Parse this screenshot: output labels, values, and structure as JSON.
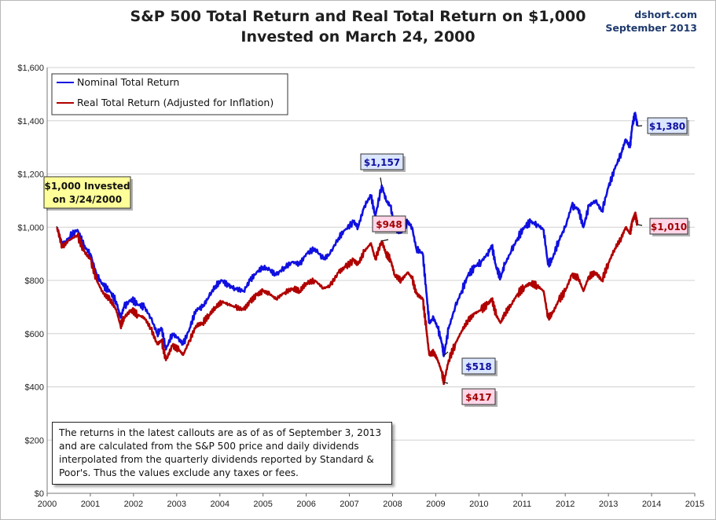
{
  "header": {
    "title_line1": "S&P 500 Total Return and Real Total Return on $1,000",
    "title_line2": "Invested on March 24, 2000",
    "source": "dshort.com",
    "date": "September 2013"
  },
  "note": "The returns in the latest callouts are as of as of September 3, 2013 and are calculated from the S&P 500 price and daily dividends interpolated from the quarterly dividends reported by Standard & Poor's. Thus the values exclude any taxes or fees.",
  "colors": {
    "nominal": "#1010e0",
    "real": "#b00000",
    "blue_box": "#dbe6ff",
    "red_box": "#ffd6e8",
    "yellow_box": "#ffff99"
  },
  "chart_data": {
    "type": "line",
    "xlabel": "",
    "ylabel": "",
    "xlim": [
      2000,
      2015
    ],
    "ylim": [
      0,
      1600
    ],
    "x_ticks": [
      "2000",
      "2001",
      "2002",
      "2003",
      "2004",
      "2005",
      "2006",
      "2007",
      "2008",
      "2009",
      "2010",
      "2011",
      "2012",
      "2013",
      "2014",
      "2015"
    ],
    "y_ticks": [
      "$0",
      "$200",
      "$400",
      "$600",
      "$800",
      "$1,000",
      "$1,200",
      "$1,400",
      "$1,600"
    ],
    "grid": true,
    "legend_position": "top-left",
    "series": [
      {
        "name": "Nominal Total Return",
        "color": "#1010e0",
        "points": [
          [
            2000.23,
            1000
          ],
          [
            2000.35,
            930
          ],
          [
            2000.5,
            960
          ],
          [
            2000.7,
            990
          ],
          [
            2000.85,
            930
          ],
          [
            2001.0,
            900
          ],
          [
            2001.15,
            820
          ],
          [
            2001.3,
            780
          ],
          [
            2001.45,
            760
          ],
          [
            2001.6,
            720
          ],
          [
            2001.7,
            660
          ],
          [
            2001.78,
            700
          ],
          [
            2001.95,
            730
          ],
          [
            2002.1,
            710
          ],
          [
            2002.25,
            700
          ],
          [
            2002.4,
            660
          ],
          [
            2002.55,
            600
          ],
          [
            2002.65,
            620
          ],
          [
            2002.75,
            540
          ],
          [
            2002.9,
            600
          ],
          [
            2003.05,
            580
          ],
          [
            2003.15,
            560
          ],
          [
            2003.3,
            620
          ],
          [
            2003.45,
            690
          ],
          [
            2003.6,
            700
          ],
          [
            2003.75,
            740
          ],
          [
            2003.9,
            780
          ],
          [
            2004.05,
            800
          ],
          [
            2004.2,
            780
          ],
          [
            2004.35,
            770
          ],
          [
            2004.55,
            760
          ],
          [
            2004.7,
            800
          ],
          [
            2004.85,
            830
          ],
          [
            2005.0,
            850
          ],
          [
            2005.15,
            840
          ],
          [
            2005.3,
            820
          ],
          [
            2005.5,
            850
          ],
          [
            2005.7,
            870
          ],
          [
            2005.85,
            860
          ],
          [
            2006.0,
            900
          ],
          [
            2006.2,
            920
          ],
          [
            2006.4,
            880
          ],
          [
            2006.55,
            900
          ],
          [
            2006.75,
            960
          ],
          [
            2006.9,
            990
          ],
          [
            2007.1,
            1020
          ],
          [
            2007.2,
            1000
          ],
          [
            2007.35,
            1080
          ],
          [
            2007.5,
            1120
          ],
          [
            2007.6,
            1040
          ],
          [
            2007.75,
            1157
          ],
          [
            2007.85,
            1100
          ],
          [
            2007.95,
            1080
          ],
          [
            2008.05,
            1000
          ],
          [
            2008.2,
            980
          ],
          [
            2008.35,
            1020
          ],
          [
            2008.45,
            1000
          ],
          [
            2008.55,
            920
          ],
          [
            2008.7,
            900
          ],
          [
            2008.78,
            760
          ],
          [
            2008.85,
            640
          ],
          [
            2008.95,
            660
          ],
          [
            2009.05,
            620
          ],
          [
            2009.15,
            560
          ],
          [
            2009.19,
            518
          ],
          [
            2009.3,
            620
          ],
          [
            2009.45,
            700
          ],
          [
            2009.6,
            760
          ],
          [
            2009.75,
            820
          ],
          [
            2009.9,
            850
          ],
          [
            2010.05,
            870
          ],
          [
            2010.2,
            900
          ],
          [
            2010.3,
            930
          ],
          [
            2010.4,
            850
          ],
          [
            2010.5,
            810
          ],
          [
            2010.6,
            860
          ],
          [
            2010.75,
            910
          ],
          [
            2010.9,
            960
          ],
          [
            2011.05,
            1000
          ],
          [
            2011.2,
            1020
          ],
          [
            2011.35,
            1010
          ],
          [
            2011.5,
            990
          ],
          [
            2011.6,
            860
          ],
          [
            2011.7,
            880
          ],
          [
            2011.85,
            950
          ],
          [
            2012.0,
            1000
          ],
          [
            2012.15,
            1080
          ],
          [
            2012.3,
            1070
          ],
          [
            2012.42,
            1000
          ],
          [
            2012.55,
            1080
          ],
          [
            2012.7,
            1100
          ],
          [
            2012.85,
            1060
          ],
          [
            2013.0,
            1150
          ],
          [
            2013.15,
            1220
          ],
          [
            2013.3,
            1280
          ],
          [
            2013.4,
            1330
          ],
          [
            2013.5,
            1300
          ],
          [
            2013.55,
            1380
          ],
          [
            2013.62,
            1430
          ],
          [
            2013.67,
            1380
          ]
        ]
      },
      {
        "name": "Real Total Return (Adjusted for Inflation)",
        "color": "#b00000",
        "points": [
          [
            2000.23,
            1000
          ],
          [
            2000.35,
            925
          ],
          [
            2000.5,
            950
          ],
          [
            2000.7,
            970
          ],
          [
            2000.85,
            910
          ],
          [
            2001.0,
            880
          ],
          [
            2001.15,
            800
          ],
          [
            2001.3,
            750
          ],
          [
            2001.45,
            730
          ],
          [
            2001.6,
            690
          ],
          [
            2001.7,
            630
          ],
          [
            2001.78,
            660
          ],
          [
            2001.95,
            690
          ],
          [
            2002.1,
            670
          ],
          [
            2002.25,
            660
          ],
          [
            2002.4,
            620
          ],
          [
            2002.55,
            560
          ],
          [
            2002.65,
            575
          ],
          [
            2002.75,
            500
          ],
          [
            2002.9,
            555
          ],
          [
            2003.05,
            540
          ],
          [
            2003.15,
            520
          ],
          [
            2003.3,
            575
          ],
          [
            2003.45,
            630
          ],
          [
            2003.6,
            640
          ],
          [
            2003.75,
            670
          ],
          [
            2003.9,
            700
          ],
          [
            2004.05,
            720
          ],
          [
            2004.2,
            710
          ],
          [
            2004.35,
            700
          ],
          [
            2004.55,
            690
          ],
          [
            2004.7,
            720
          ],
          [
            2004.85,
            745
          ],
          [
            2005.0,
            760
          ],
          [
            2005.15,
            750
          ],
          [
            2005.3,
            730
          ],
          [
            2005.5,
            755
          ],
          [
            2005.7,
            770
          ],
          [
            2005.85,
            760
          ],
          [
            2006.0,
            790
          ],
          [
            2006.2,
            800
          ],
          [
            2006.4,
            770
          ],
          [
            2006.55,
            780
          ],
          [
            2006.75,
            830
          ],
          [
            2006.9,
            850
          ],
          [
            2007.1,
            875
          ],
          [
            2007.2,
            860
          ],
          [
            2007.35,
            910
          ],
          [
            2007.5,
            940
          ],
          [
            2007.6,
            880
          ],
          [
            2007.75,
            948
          ],
          [
            2007.85,
            900
          ],
          [
            2007.95,
            880
          ],
          [
            2008.05,
            820
          ],
          [
            2008.2,
            800
          ],
          [
            2008.35,
            830
          ],
          [
            2008.45,
            810
          ],
          [
            2008.55,
            750
          ],
          [
            2008.7,
            730
          ],
          [
            2008.78,
            620
          ],
          [
            2008.85,
            520
          ],
          [
            2008.95,
            530
          ],
          [
            2009.05,
            500
          ],
          [
            2009.15,
            450
          ],
          [
            2009.19,
            417
          ],
          [
            2009.3,
            500
          ],
          [
            2009.45,
            560
          ],
          [
            2009.6,
            610
          ],
          [
            2009.75,
            650
          ],
          [
            2009.9,
            675
          ],
          [
            2010.05,
            690
          ],
          [
            2010.2,
            710
          ],
          [
            2010.3,
            730
          ],
          [
            2010.4,
            670
          ],
          [
            2010.5,
            640
          ],
          [
            2010.6,
            675
          ],
          [
            2010.75,
            710
          ],
          [
            2010.9,
            750
          ],
          [
            2011.05,
            775
          ],
          [
            2011.2,
            790
          ],
          [
            2011.35,
            780
          ],
          [
            2011.5,
            760
          ],
          [
            2011.6,
            660
          ],
          [
            2011.7,
            675
          ],
          [
            2011.85,
            725
          ],
          [
            2012.0,
            760
          ],
          [
            2012.15,
            820
          ],
          [
            2012.3,
            810
          ],
          [
            2012.42,
            760
          ],
          [
            2012.55,
            815
          ],
          [
            2012.7,
            830
          ],
          [
            2012.85,
            800
          ],
          [
            2013.0,
            865
          ],
          [
            2013.15,
            920
          ],
          [
            2013.3,
            960
          ],
          [
            2013.4,
            1000
          ],
          [
            2013.5,
            975
          ],
          [
            2013.55,
            1020
          ],
          [
            2013.62,
            1050
          ],
          [
            2013.67,
            1010
          ]
        ]
      }
    ],
    "annotations": [
      {
        "label": "$1,000 Invested on 3/24/2000",
        "style": "yellow"
      },
      {
        "label": "$1,157",
        "style": "blue"
      },
      {
        "label": "$948",
        "style": "red"
      },
      {
        "label": "$518",
        "style": "blue"
      },
      {
        "label": "$417",
        "style": "red"
      },
      {
        "label": "$1,380",
        "style": "blue"
      },
      {
        "label": "$1,010",
        "style": "red"
      }
    ]
  }
}
